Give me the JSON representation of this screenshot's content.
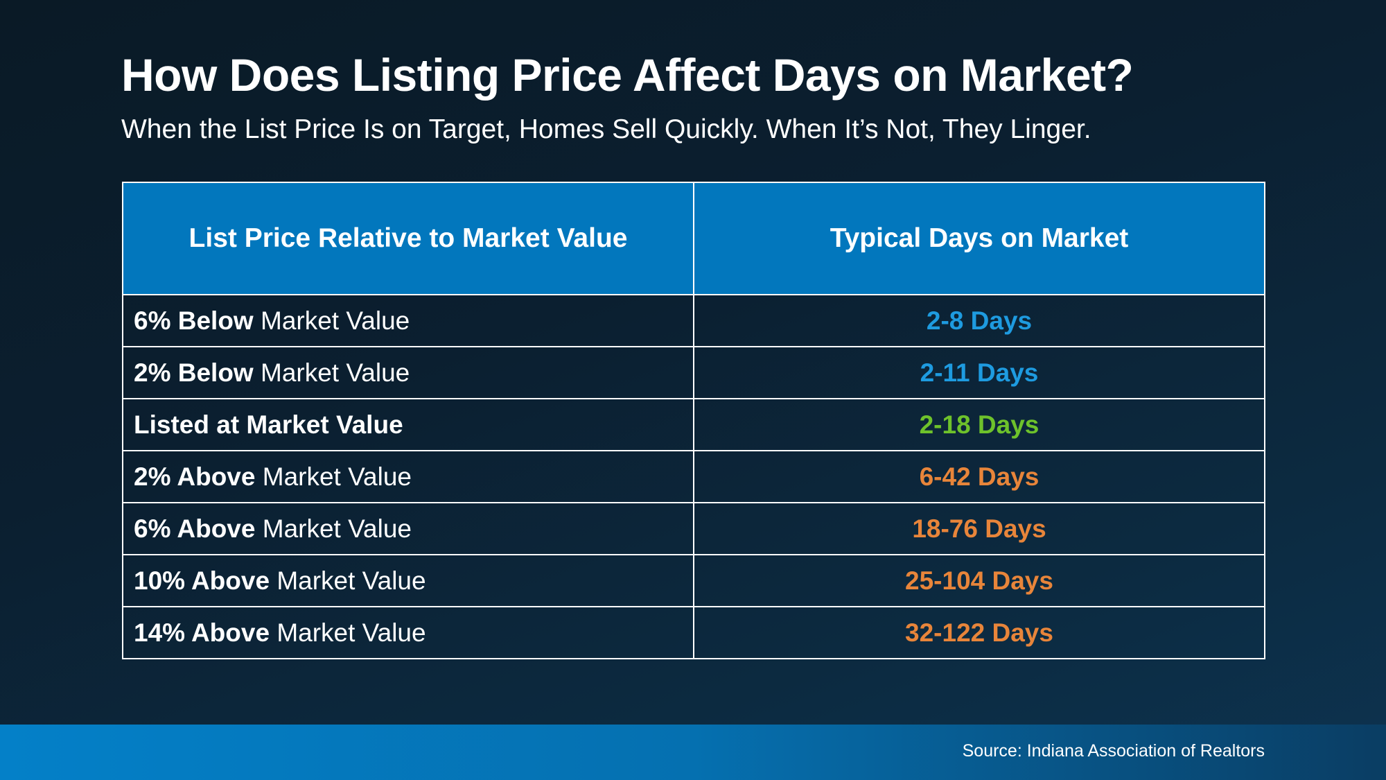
{
  "title": "How Does Listing Price Affect Days on Market?",
  "subtitle": "When the List Price Is on Target, Homes Sell Quickly. When It’s Not, They Linger.",
  "colors": {
    "header_bg": "#0277bd",
    "below": "#1e9be0",
    "at": "#6ec22b",
    "above": "#e8853a"
  },
  "chart_data": {
    "type": "table",
    "columns": [
      "List Price Relative to Market Value",
      "Typical Days on Market"
    ],
    "rows": [
      {
        "price_bold": "6% Below",
        "price_rest": " Market Value",
        "days": "2-8 Days",
        "status": "below"
      },
      {
        "price_bold": "2% Below",
        "price_rest": " Market Value",
        "days": "2-11 Days",
        "status": "below"
      },
      {
        "price_bold": "Listed at Market Value",
        "price_rest": "",
        "days": "2-18 Days",
        "status": "at"
      },
      {
        "price_bold": "2% Above",
        "price_rest": " Market Value",
        "days": "6-42 Days",
        "status": "above"
      },
      {
        "price_bold": "6% Above",
        "price_rest": " Market Value",
        "days": "18-76 Days",
        "status": "above"
      },
      {
        "price_bold": "10% Above",
        "price_rest": " Market Value",
        "days": "25-104 Days",
        "status": "above"
      },
      {
        "price_bold": "14% Above",
        "price_rest": " Market Value",
        "days": "32-122 Days",
        "status": "above"
      }
    ]
  },
  "footer": {
    "source": "Source: Indiana Association of Realtors"
  }
}
